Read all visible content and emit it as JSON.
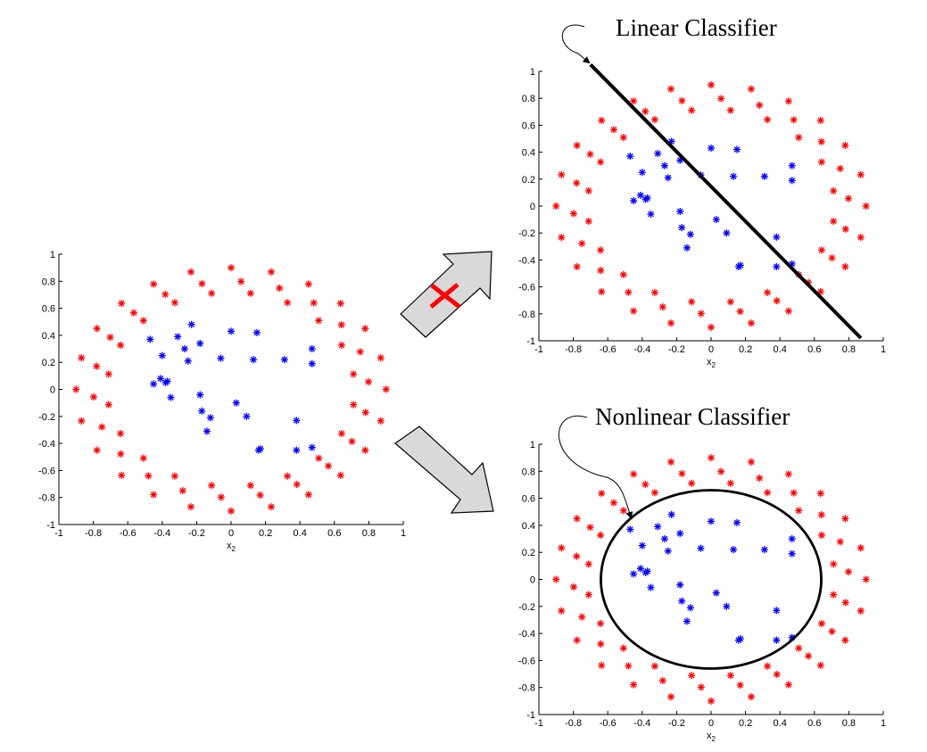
{
  "titles": {
    "linear": "Linear Classifier",
    "nonlinear": "Nonlinear Classifier"
  },
  "colors": {
    "outer_class": "#ff0000",
    "inner_class": "#0000ff",
    "boundary": "#000000",
    "arrow_fill": "#d9d9d9",
    "cross_mark": "#ff0000"
  },
  "chart_data": [
    {
      "type": "scatter",
      "title": "",
      "xlabel": "x2",
      "ylabel": "",
      "xlim": [
        -1,
        1
      ],
      "ylim": [
        -1,
        1
      ],
      "xticks": [
        -1,
        -0.8,
        -0.6,
        -0.4,
        -0.2,
        0,
        0.2,
        0.4,
        0.6,
        0.8,
        1
      ],
      "yticks": [
        -1,
        -0.8,
        -0.6,
        -0.4,
        -0.2,
        0,
        0.2,
        0.4,
        0.6,
        0.8,
        1
      ],
      "series_ref": "points"
    },
    {
      "type": "scatter",
      "title": "Linear Classifier",
      "xlabel": "x2",
      "ylabel": "",
      "xlim": [
        -1,
        1
      ],
      "ylim": [
        -1,
        1
      ],
      "xticks": [
        -1,
        -0.8,
        -0.6,
        -0.4,
        -0.2,
        0,
        0.2,
        0.4,
        0.6,
        0.8,
        1
      ],
      "yticks": [
        -1,
        -0.8,
        -0.6,
        -0.4,
        -0.2,
        0,
        0.2,
        0.4,
        0.6,
        0.8,
        1
      ],
      "series_ref": "points",
      "boundary": {
        "kind": "line",
        "from": [
          -0.7,
          1.05
        ],
        "to": [
          0.87,
          -0.98
        ]
      }
    },
    {
      "type": "scatter",
      "title": "Nonlinear Classifier",
      "xlabel": "x2",
      "ylabel": "",
      "xlim": [
        -1,
        1
      ],
      "ylim": [
        -1,
        1
      ],
      "xticks": [
        -1,
        -0.8,
        -0.6,
        -0.4,
        -0.2,
        0,
        0.2,
        0.4,
        0.6,
        0.8,
        1
      ],
      "yticks": [
        -1,
        -0.8,
        -0.6,
        -0.4,
        -0.2,
        0,
        0.2,
        0.4,
        0.6,
        0.8,
        1
      ],
      "series_ref": "points",
      "boundary": {
        "kind": "ellipse",
        "center": [
          0,
          0
        ],
        "rx": 0.64,
        "ry": 0.66
      }
    }
  ],
  "points": {
    "outer": {
      "rings": [
        {
          "rx": 0.72,
          "ry": 0.72,
          "count": 20,
          "phase": 9
        },
        {
          "rx": 0.8,
          "ry": 0.8,
          "count": 22,
          "phase": 4
        },
        {
          "rx": 0.9,
          "ry": 0.9,
          "count": 24,
          "phase": 0
        }
      ]
    },
    "inner": [
      [
        -0.47,
        0.37
      ],
      [
        -0.4,
        0.25
      ],
      [
        -0.45,
        0.04
      ],
      [
        -0.41,
        0.08
      ],
      [
        -0.38,
        0.05
      ],
      [
        -0.37,
        0.06
      ],
      [
        -0.35,
        -0.06
      ],
      [
        -0.31,
        0.39
      ],
      [
        -0.27,
        0.3
      ],
      [
        -0.25,
        0.21
      ],
      [
        -0.23,
        0.48
      ],
      [
        -0.18,
        0.34
      ],
      [
        -0.18,
        -0.04
      ],
      [
        -0.17,
        -0.16
      ],
      [
        -0.14,
        -0.31
      ],
      [
        -0.12,
        -0.21
      ],
      [
        -0.06,
        0.23
      ],
      [
        0.0,
        0.43
      ],
      [
        0.03,
        -0.1
      ],
      [
        0.09,
        -0.2
      ],
      [
        0.13,
        0.22
      ],
      [
        0.15,
        0.42
      ],
      [
        0.16,
        -0.45
      ],
      [
        0.17,
        -0.44
      ],
      [
        0.31,
        0.22
      ],
      [
        0.38,
        -0.45
      ],
      [
        0.38,
        -0.23
      ],
      [
        0.47,
        0.3
      ],
      [
        0.47,
        0.19
      ],
      [
        0.47,
        -0.43
      ]
    ]
  }
}
